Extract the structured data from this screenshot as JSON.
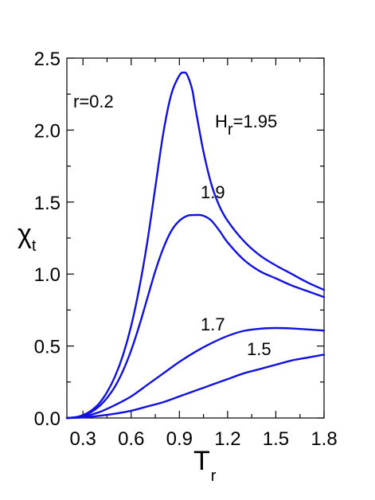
{
  "chart_data": {
    "type": "line",
    "title": "",
    "xlabel": {
      "main": "T",
      "sub": "r"
    },
    "ylabel": {
      "main": "χ",
      "sub": "t"
    },
    "xlim": [
      0.2,
      1.8
    ],
    "ylim": [
      0.0,
      2.5
    ],
    "x_ticks": [
      0.3,
      0.6,
      0.9,
      1.2,
      1.5,
      1.8
    ],
    "x_tick_labels": [
      "0.3",
      "0.6",
      "0.9",
      "1.2",
      "1.5",
      "1.8"
    ],
    "y_ticks": [
      0.0,
      0.5,
      1.0,
      1.5,
      2.0,
      2.5
    ],
    "y_tick_labels": [
      "0.0",
      "0.5",
      "1.0",
      "1.5",
      "2.0",
      "2.5"
    ],
    "grid": false,
    "color": "#1010e0",
    "annotations": {
      "param": "r=0.2",
      "label_195_main": "H",
      "label_195_sub": "r",
      "label_195_value": "=1.95",
      "label_19": "1.9",
      "label_17": "1.7",
      "label_15": "1.5"
    },
    "series": [
      {
        "x": [
          0.2,
          0.25,
          0.3,
          0.35,
          0.4,
          0.45,
          0.5,
          0.55,
          0.6,
          0.65,
          0.7,
          0.75,
          0.8,
          0.85,
          0.9,
          0.93,
          0.95,
          0.98,
          1.0,
          1.05,
          1.1,
          1.15,
          1.2,
          1.3,
          1.4,
          1.5,
          1.6,
          1.7,
          1.8
        ],
        "y": [
          0.0,
          0.005,
          0.02,
          0.05,
          0.1,
          0.18,
          0.29,
          0.44,
          0.64,
          0.9,
          1.22,
          1.6,
          1.98,
          2.25,
          2.38,
          2.4,
          2.38,
          2.28,
          2.15,
          1.85,
          1.62,
          1.47,
          1.37,
          1.23,
          1.13,
          1.06,
          1.0,
          0.94,
          0.89
        ]
      },
      {
        "x": [
          0.2,
          0.25,
          0.3,
          0.35,
          0.4,
          0.45,
          0.5,
          0.55,
          0.6,
          0.65,
          0.7,
          0.75,
          0.8,
          0.85,
          0.9,
          0.95,
          1.0,
          1.03,
          1.06,
          1.1,
          1.15,
          1.2,
          1.3,
          1.4,
          1.5,
          1.6,
          1.7,
          1.8
        ],
        "y": [
          0.0,
          0.004,
          0.015,
          0.04,
          0.08,
          0.14,
          0.22,
          0.33,
          0.47,
          0.64,
          0.83,
          1.02,
          1.18,
          1.3,
          1.37,
          1.405,
          1.41,
          1.41,
          1.4,
          1.37,
          1.3,
          1.22,
          1.1,
          1.02,
          0.97,
          0.92,
          0.88,
          0.84
        ]
      },
      {
        "x": [
          0.2,
          0.3,
          0.4,
          0.5,
          0.6,
          0.7,
          0.8,
          0.9,
          1.0,
          1.1,
          1.2,
          1.3,
          1.4,
          1.5,
          1.6,
          1.7,
          1.8
        ],
        "y": [
          0.0,
          0.01,
          0.04,
          0.09,
          0.15,
          0.23,
          0.31,
          0.39,
          0.46,
          0.52,
          0.57,
          0.605,
          0.62,
          0.625,
          0.622,
          0.615,
          0.607
        ]
      },
      {
        "x": [
          0.2,
          0.3,
          0.4,
          0.5,
          0.6,
          0.7,
          0.8,
          0.9,
          1.0,
          1.1,
          1.2,
          1.3,
          1.4,
          1.5,
          1.6,
          1.7,
          1.8
        ],
        "y": [
          0.0,
          0.004,
          0.015,
          0.03,
          0.05,
          0.08,
          0.11,
          0.15,
          0.19,
          0.23,
          0.27,
          0.31,
          0.34,
          0.37,
          0.4,
          0.42,
          0.44
        ]
      }
    ]
  }
}
